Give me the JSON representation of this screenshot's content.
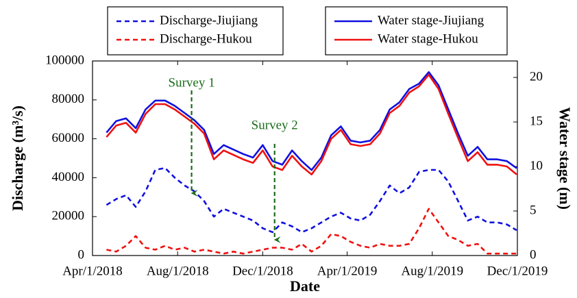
{
  "chart_data": {
    "type": "line",
    "x_label": "Date",
    "y_label": "Discharge (m³/s)",
    "y2_label": "Water stage (m)",
    "x": [
      "2018-04-21",
      "2018-05-05",
      "2018-05-19",
      "2018-06-02",
      "2018-06-16",
      "2018-06-30",
      "2018-07-14",
      "2018-07-28",
      "2018-08-11",
      "2018-08-25",
      "2018-09-08",
      "2018-09-22",
      "2018-10-06",
      "2018-10-20",
      "2018-11-03",
      "2018-11-17",
      "2018-12-01",
      "2018-12-15",
      "2018-12-29",
      "2019-01-12",
      "2019-01-26",
      "2019-02-09",
      "2019-02-23",
      "2019-03-09",
      "2019-03-23",
      "2019-04-06",
      "2019-04-20",
      "2019-05-04",
      "2019-05-18",
      "2019-06-01",
      "2019-06-15",
      "2019-06-29",
      "2019-07-13",
      "2019-07-27",
      "2019-08-10",
      "2019-08-24",
      "2019-09-07",
      "2019-09-21",
      "2019-10-05",
      "2019-10-19",
      "2019-11-02",
      "2019-11-16",
      "2019-11-30"
    ],
    "xlim": [
      "2018-04-01",
      "2019-12-01"
    ],
    "xticks": [
      {
        "value": "2018-04-01",
        "label": "Apr/1/2018"
      },
      {
        "value": "2018-08-01",
        "label": "Aug/1/2018"
      },
      {
        "value": "2018-12-01",
        "label": "Dec/1/2018"
      },
      {
        "value": "2019-04-01",
        "label": "Apr/1/2019"
      },
      {
        "value": "2019-08-01",
        "label": "Aug/1/2019"
      },
      {
        "value": "2019-12-01",
        "label": "Dec/1/2019"
      }
    ],
    "ylim": [
      0,
      100000
    ],
    "yticks": [
      0,
      20000,
      40000,
      60000,
      80000,
      100000
    ],
    "y2lim": [
      0,
      21.85
    ],
    "y2ticks": [
      0,
      5,
      10,
      15,
      20
    ],
    "series": [
      {
        "name": "Discharge-Jiujiang",
        "color": "#1010e0",
        "linestyle": "dashed",
        "axis": "y",
        "values": [
          26000,
          29000,
          31000,
          25000,
          33000,
          44000,
          45000,
          40000,
          36000,
          33000,
          28000,
          20000,
          24000,
          22000,
          20000,
          18000,
          14000,
          12000,
          17000,
          15000,
          12000,
          14000,
          17000,
          20000,
          22000,
          19000,
          18000,
          21000,
          28000,
          36000,
          32000,
          35000,
          43000,
          44000,
          44000,
          38000,
          28000,
          18000,
          20000,
          17000,
          17000,
          16000,
          13000
        ]
      },
      {
        "name": "Discharge-Hukou",
        "color": "#f01010",
        "linestyle": "dashed",
        "axis": "y",
        "values": [
          3000,
          2000,
          5000,
          10000,
          4000,
          3000,
          5000,
          3000,
          4000,
          2000,
          3000,
          2000,
          1000,
          2000,
          1000,
          2000,
          3000,
          4000,
          4000,
          3000,
          6000,
          2000,
          5000,
          11000,
          10000,
          7000,
          5000,
          4000,
          6000,
          5000,
          5000,
          6000,
          14000,
          24000,
          17000,
          10000,
          8000,
          5000,
          6000,
          1000,
          1000,
          1000,
          1000
        ]
      },
      {
        "name": "Water stage-Jiujiang",
        "color": "#1010e0",
        "linestyle": "solid",
        "axis": "y2",
        "values": [
          13.8,
          15.1,
          15.4,
          14.3,
          16.4,
          17.4,
          17.4,
          16.8,
          16.0,
          15.2,
          14.1,
          11.4,
          12.4,
          11.9,
          11.4,
          11.0,
          12.4,
          10.6,
          10.2,
          11.8,
          10.6,
          9.6,
          11.0,
          13.5,
          14.5,
          12.9,
          12.7,
          12.9,
          14.1,
          16.4,
          17.2,
          18.7,
          19.3,
          20.6,
          19.1,
          16.4,
          13.7,
          11.2,
          12.2,
          10.8,
          10.8,
          10.6,
          9.8
        ]
      },
      {
        "name": "Water stage-Hukou",
        "color": "#f01010",
        "linestyle": "solid",
        "axis": "y2",
        "values": [
          13.3,
          14.6,
          14.9,
          13.8,
          15.9,
          17.0,
          17.0,
          16.4,
          15.6,
          14.8,
          13.7,
          10.8,
          11.8,
          11.3,
          10.8,
          10.4,
          11.8,
          10.0,
          9.6,
          11.2,
          10.0,
          9.1,
          10.6,
          13.1,
          14.1,
          12.5,
          12.3,
          12.5,
          13.7,
          16.0,
          16.8,
          18.3,
          19.0,
          20.3,
          18.7,
          15.9,
          13.2,
          10.6,
          11.6,
          10.2,
          10.2,
          10.0,
          9.1
        ]
      }
    ],
    "annotations": [
      {
        "text": "Survey 1",
        "x": "2018-08-21"
      },
      {
        "text": "Survey 2",
        "x": "2018-12-18"
      }
    ],
    "legend": "top"
  }
}
